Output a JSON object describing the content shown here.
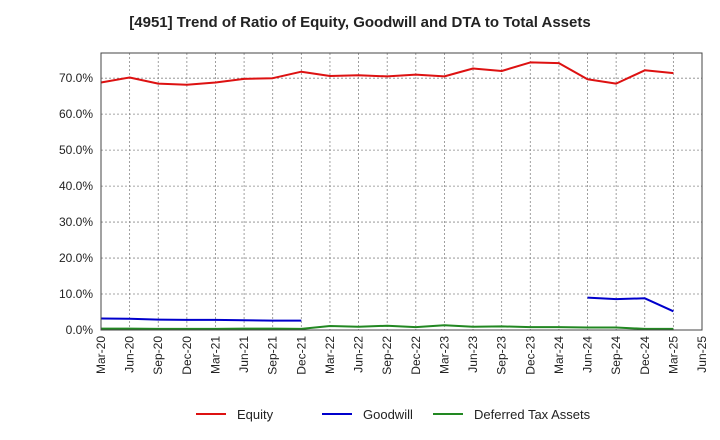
{
  "chart_data": {
    "type": "line",
    "title": "[4951]  Trend of Ratio of Equity, Goodwill and DTA to Total Assets",
    "xlabel": "",
    "ylabel": "",
    "ylim": [
      0,
      77
    ],
    "yticks": [
      0,
      10,
      20,
      30,
      40,
      50,
      60,
      70
    ],
    "ytick_labels": [
      "0.0%",
      "10.0%",
      "20.0%",
      "30.0%",
      "40.0%",
      "50.0%",
      "60.0%",
      "70.0%"
    ],
    "grid": true,
    "legend_position": "bottom",
    "x": [
      "Mar-20",
      "Jun-20",
      "Sep-20",
      "Dec-20",
      "Mar-21",
      "Jun-21",
      "Sep-21",
      "Dec-21",
      "Mar-22",
      "Jun-22",
      "Sep-22",
      "Dec-22",
      "Mar-23",
      "Jun-23",
      "Sep-23",
      "Dec-23",
      "Mar-24",
      "Jun-24",
      "Sep-24",
      "Dec-24",
      "Mar-25",
      "Jun-25"
    ],
    "series": [
      {
        "name": "Equity",
        "color": "#dd1111",
        "values": [
          68.8,
          70.2,
          68.5,
          68.2,
          68.8,
          69.8,
          70.0,
          71.8,
          70.6,
          70.8,
          70.5,
          71.0,
          70.5,
          72.7,
          72.0,
          74.4,
          74.2,
          69.7,
          68.5,
          72.2,
          71.4,
          null
        ]
      },
      {
        "name": "Goodwill",
        "color": "#0000cc",
        "values": [
          3.2,
          3.1,
          2.9,
          2.8,
          2.8,
          2.7,
          2.6,
          2.6,
          null,
          null,
          null,
          null,
          null,
          null,
          null,
          null,
          null,
          9.0,
          8.6,
          8.8,
          5.2,
          null
        ]
      },
      {
        "name": "Deferred Tax Assets",
        "color": "#228822",
        "values": [
          0.4,
          0.4,
          0.3,
          0.3,
          0.3,
          0.4,
          0.4,
          0.3,
          1.1,
          0.9,
          1.2,
          0.8,
          1.3,
          0.9,
          1.0,
          0.8,
          0.8,
          0.7,
          0.7,
          0.3,
          0.3,
          null
        ]
      }
    ]
  }
}
